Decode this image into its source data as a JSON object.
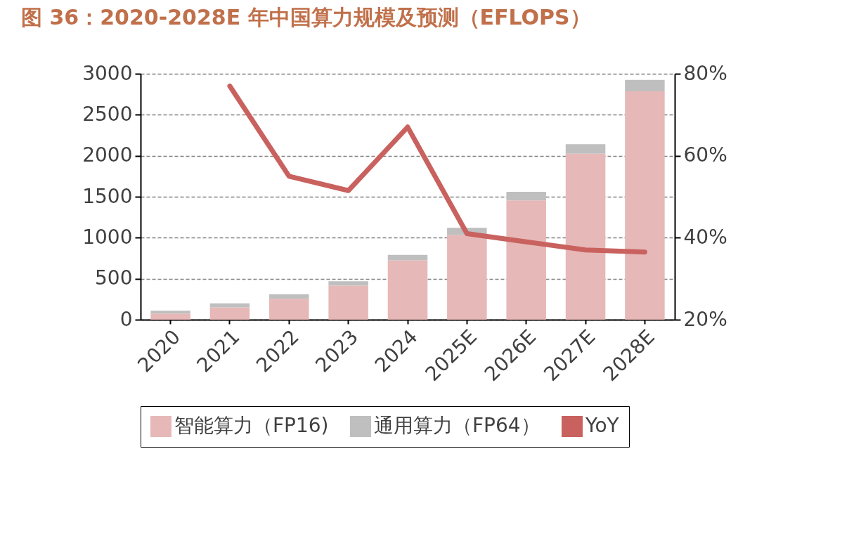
{
  "chart_data": {
    "type": "bar",
    "title": "图 36：2020-2028E 年中国算力规模及预测（EFLOPS）",
    "categories": [
      "2020",
      "2021",
      "2022",
      "2023",
      "2024",
      "2025E",
      "2026E",
      "2027E",
      "2028E"
    ],
    "stacked": true,
    "series": [
      {
        "name": "智能算力（FP16)",
        "color": "#e6b8b7",
        "values": [
          75,
          150,
          255,
          415,
          725,
          1035,
          1455,
          2025,
          2785
        ]
      },
      {
        "name": "通用算力（FP64）",
        "color": "#bfbfbf",
        "values": [
          35,
          50,
          55,
          55,
          65,
          85,
          105,
          115,
          140
        ]
      },
      {
        "name": "YoY",
        "type": "line",
        "axis": "y2",
        "color": "#c9625f",
        "values": [
          null,
          77,
          55,
          51.5,
          67,
          41,
          39,
          37,
          36.5
        ]
      }
    ],
    "ylim": [
      0,
      3000
    ],
    "yticks": [
      0,
      500,
      1000,
      1500,
      2000,
      2500,
      3000
    ],
    "y2lim": [
      20,
      80
    ],
    "y2ticks": [
      {
        "value": 20,
        "label": "20%"
      },
      {
        "value": 40,
        "label": "40%"
      },
      {
        "value": 60,
        "label": "60%"
      },
      {
        "value": 80,
        "label": "80%"
      }
    ],
    "grid": "y",
    "legend": "bottom",
    "marker": "none",
    "line_style": "solid"
  }
}
